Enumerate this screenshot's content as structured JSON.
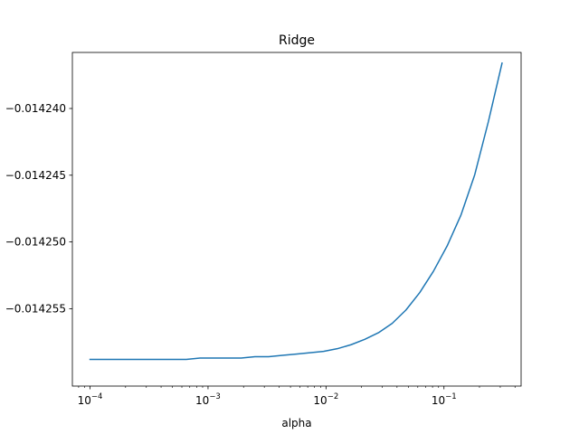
{
  "chart_data": {
    "type": "line",
    "title": "Ridge",
    "xlabel": "alpha",
    "ylabel": "",
    "xscale": "log",
    "xlim": [
      7.08e-05,
      0.4507
    ],
    "ylim": [
      -0.0142608,
      -0.0142358
    ],
    "grid": false,
    "x_ticks": [
      0.0001,
      0.001,
      0.01,
      0.1
    ],
    "x_tick_labels": [
      "10^-4",
      "10^-3",
      "10^-2",
      "10^-1"
    ],
    "y_ticks": [
      -0.01424,
      -0.014245,
      -0.01425,
      -0.014255
    ],
    "y_tick_labels": [
      "-0.014240",
      "-0.014245",
      "-0.014250",
      "-0.014255"
    ],
    "series": [
      {
        "color": "#1f77b4",
        "x": [
          0.0001,
          0.000131,
          0.000171,
          0.000224,
          0.000292,
          0.000382,
          0.0005,
          0.000654,
          0.000855,
          0.001118,
          0.001462,
          0.00191,
          0.002498,
          0.003266,
          0.00427,
          0.005582,
          0.007297,
          0.00954,
          0.01247,
          0.0163,
          0.02131,
          0.02786,
          0.03642,
          0.04762,
          0.06225,
          0.08138,
          0.1064,
          0.1391,
          0.1818,
          0.2377,
          0.3107
        ],
        "y": [
          -0.0142588,
          -0.0142588,
          -0.0142588,
          -0.0142588,
          -0.0142588,
          -0.0142588,
          -0.0142588,
          -0.0142588,
          -0.0142587,
          -0.0142587,
          -0.0142587,
          -0.0142587,
          -0.0142586,
          -0.0142586,
          -0.0142585,
          -0.0142584,
          -0.0142583,
          -0.0142582,
          -0.014258,
          -0.0142577,
          -0.0142573,
          -0.0142568,
          -0.0142561,
          -0.0142551,
          -0.0142538,
          -0.0142522,
          -0.0142503,
          -0.014248,
          -0.014245,
          -0.014241,
          -0.0142366
        ]
      }
    ]
  }
}
